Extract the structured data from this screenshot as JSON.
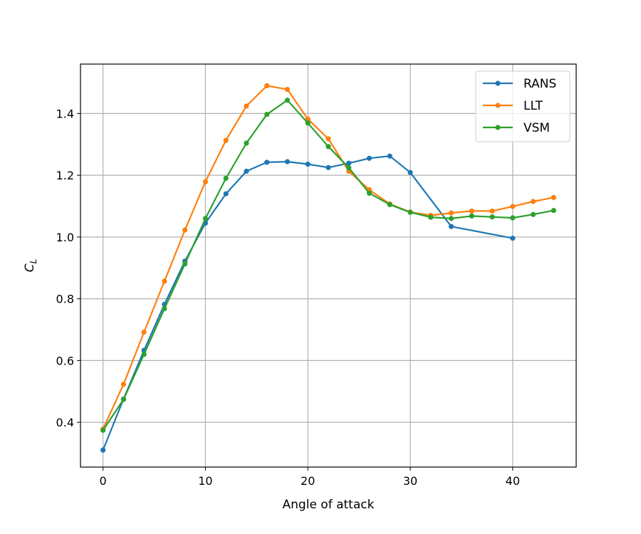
{
  "chart_data": {
    "type": "line",
    "title": "",
    "xlabel": "Angle of attack",
    "ylabel": "C",
    "ylabel_subscript": "L",
    "xlim": [
      -2.2,
      46.2
    ],
    "ylim": [
      0.255,
      1.56
    ],
    "xticks": [
      0,
      10,
      20,
      30,
      40
    ],
    "yticks": [
      0.4,
      0.6,
      0.8,
      1.0,
      1.2,
      1.4
    ],
    "xtick_labels": [
      "0",
      "10",
      "20",
      "30",
      "40"
    ],
    "ytick_labels": [
      "0.4",
      "0.6",
      "0.8",
      "1.0",
      "1.2",
      "1.4"
    ],
    "grid": true,
    "legend_position": "top-right",
    "series": [
      {
        "name": "RANS",
        "color": "#1f77b4",
        "x": [
          0,
          2,
          4,
          6,
          8,
          10,
          12,
          14,
          16,
          18,
          20,
          22,
          24,
          26,
          28,
          30,
          34,
          40
        ],
        "y": [
          0.31,
          0.475,
          0.633,
          0.782,
          0.922,
          1.045,
          1.14,
          1.213,
          1.242,
          1.244,
          1.236,
          1.225,
          1.239,
          1.255,
          1.262,
          1.209,
          1.034,
          0.996
        ]
      },
      {
        "name": "LLT",
        "color": "#ff7f0e",
        "x": [
          0,
          2,
          4,
          6,
          8,
          10,
          12,
          14,
          16,
          18,
          20,
          22,
          24,
          26,
          28,
          30,
          32,
          34,
          36,
          38,
          40,
          42,
          44
        ],
        "y": [
          0.378,
          0.523,
          0.692,
          0.857,
          1.023,
          1.179,
          1.313,
          1.424,
          1.49,
          1.478,
          1.382,
          1.318,
          1.213,
          1.153,
          1.107,
          1.081,
          1.07,
          1.078,
          1.084,
          1.084,
          1.099,
          1.115,
          1.128
        ]
      },
      {
        "name": "VSM",
        "color": "#2ca02c",
        "x": [
          0,
          2,
          4,
          6,
          8,
          10,
          12,
          14,
          16,
          18,
          20,
          22,
          24,
          26,
          28,
          30,
          32,
          34,
          36,
          38,
          40,
          42,
          44
        ],
        "y": [
          0.374,
          0.474,
          0.62,
          0.768,
          0.913,
          1.06,
          1.19,
          1.304,
          1.397,
          1.443,
          1.369,
          1.293,
          1.224,
          1.142,
          1.105,
          1.08,
          1.064,
          1.06,
          1.068,
          1.065,
          1.062,
          1.073,
          1.086
        ]
      }
    ]
  }
}
